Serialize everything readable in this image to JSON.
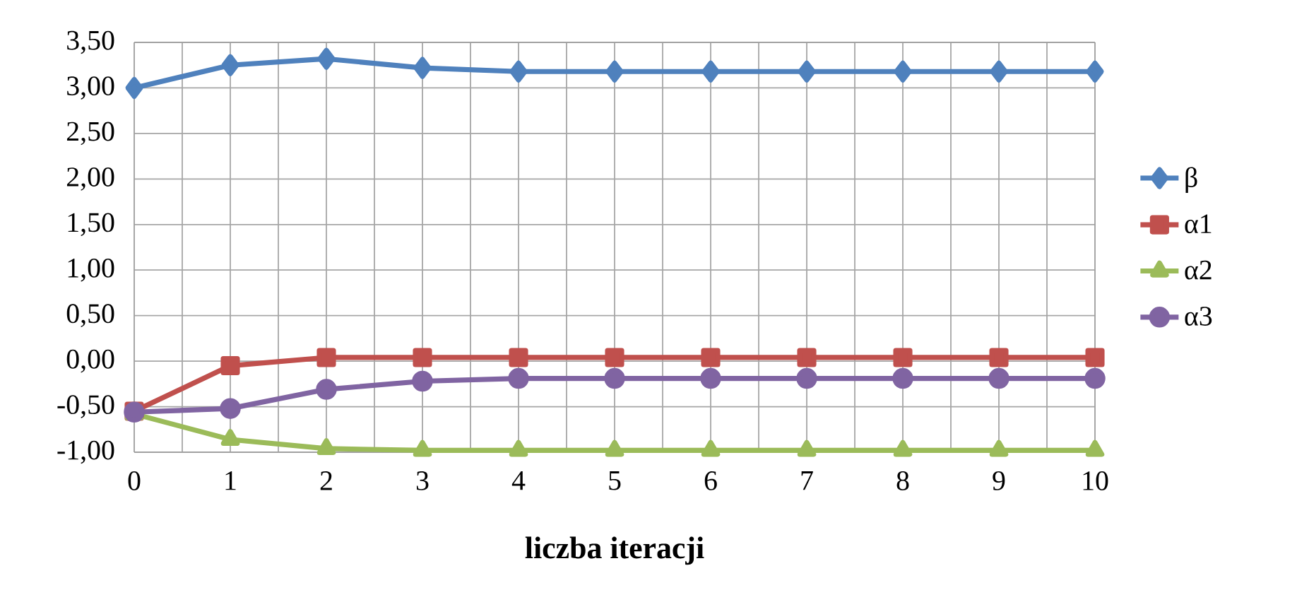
{
  "chart_data": {
    "type": "line",
    "xlabel": "liczba iteracji",
    "categories": [
      "0",
      "1",
      "2",
      "3",
      "4",
      "5",
      "6",
      "7",
      "8",
      "9",
      "10"
    ],
    "series": [
      {
        "name": "β",
        "color": "#4f81bd",
        "marker": "diamond",
        "values": [
          3.0,
          3.25,
          3.32,
          3.22,
          3.18,
          3.18,
          3.18,
          3.18,
          3.18,
          3.18,
          3.18
        ]
      },
      {
        "name": "α1",
        "color": "#c0504d",
        "marker": "square",
        "values": [
          -0.55,
          -0.05,
          0.04,
          0.04,
          0.04,
          0.04,
          0.04,
          0.04,
          0.04,
          0.04,
          0.04
        ]
      },
      {
        "name": "α2",
        "color": "#9bbb59",
        "marker": "triangle",
        "values": [
          -0.58,
          -0.86,
          -0.96,
          -0.98,
          -0.98,
          -0.98,
          -0.98,
          -0.98,
          -0.98,
          -0.98,
          -0.98
        ]
      },
      {
        "name": "α3",
        "color": "#8064a2",
        "marker": "circle",
        "values": [
          -0.56,
          -0.52,
          -0.31,
          -0.22,
          -0.19,
          -0.19,
          -0.19,
          -0.19,
          -0.19,
          -0.19,
          -0.19
        ]
      }
    ],
    "ylim": [
      -1.0,
      3.5
    ],
    "yticks": [
      {
        "value": -1.0,
        "label": "-1,00"
      },
      {
        "value": -0.5,
        "label": "-0,50"
      },
      {
        "value": 0.0,
        "label": "0,00"
      },
      {
        "value": 0.5,
        "label": "0,50"
      },
      {
        "value": 1.0,
        "label": "1,00"
      },
      {
        "value": 1.5,
        "label": "1,50"
      },
      {
        "value": 2.0,
        "label": "2,00"
      },
      {
        "value": 2.5,
        "label": "2,50"
      },
      {
        "value": 3.0,
        "label": "3,00"
      },
      {
        "value": 3.5,
        "label": "3,50"
      }
    ],
    "grid": true,
    "legend": "right",
    "line_style": "solid"
  }
}
